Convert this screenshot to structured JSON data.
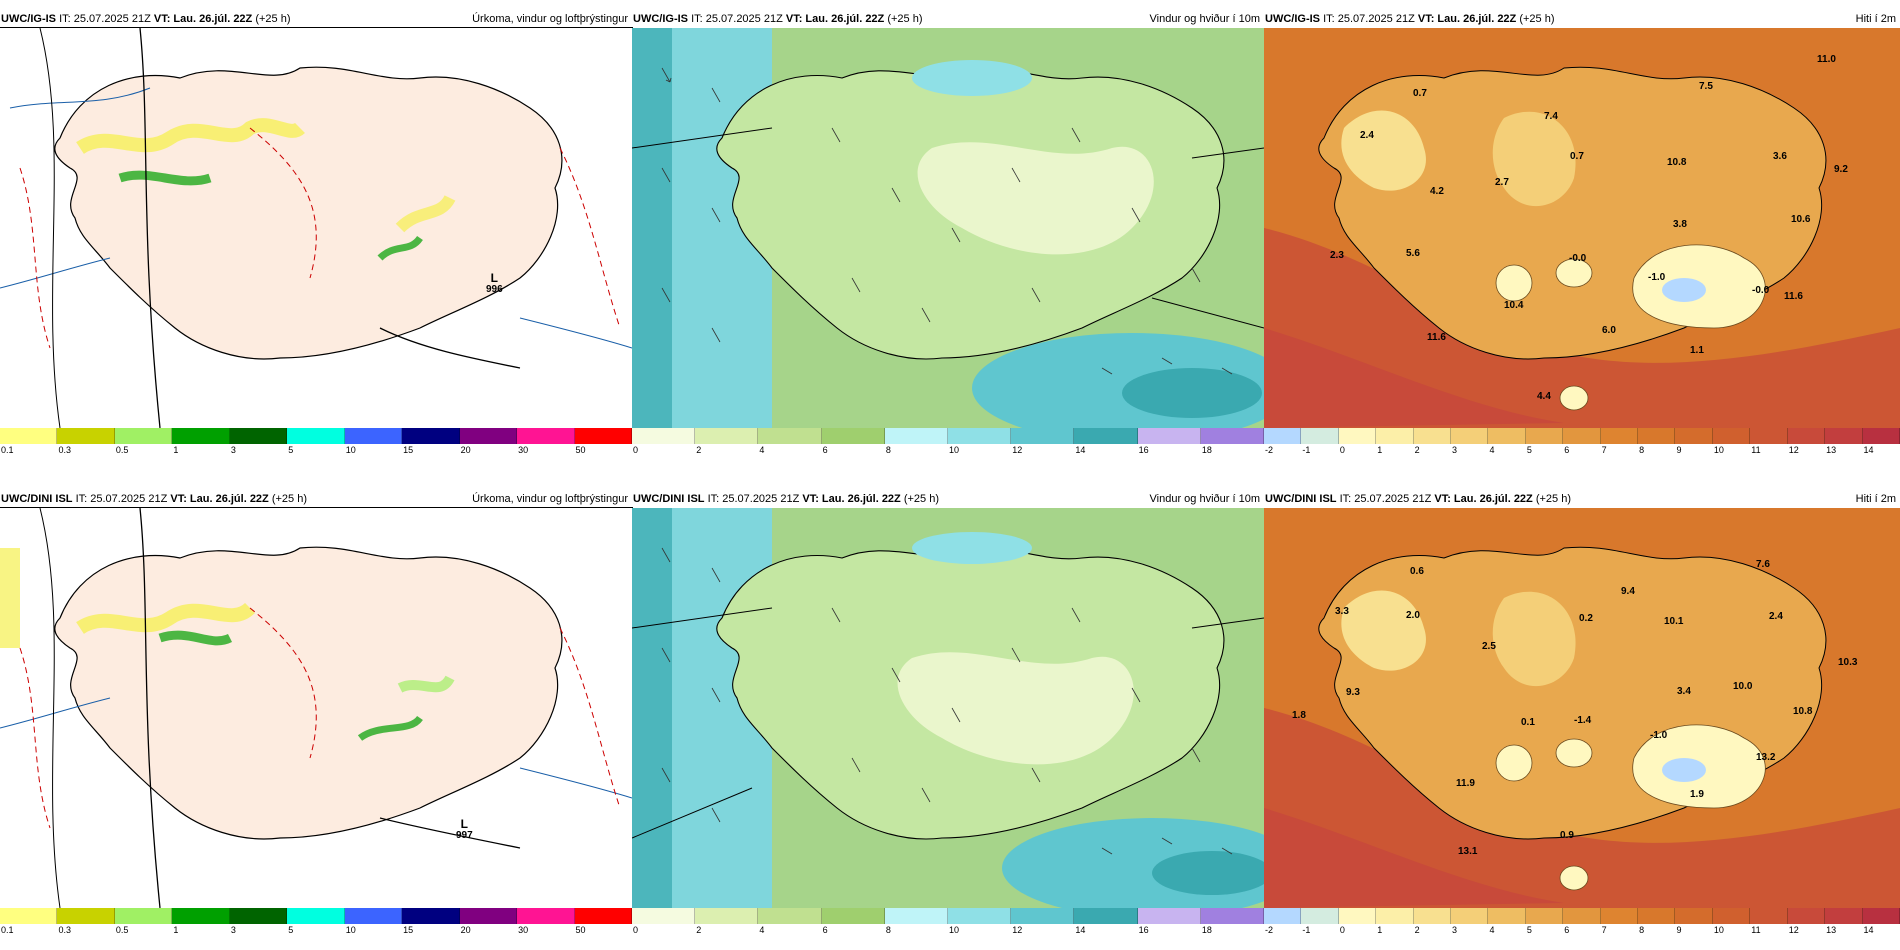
{
  "header": {
    "it": "IT: 25.07.2025 21Z",
    "vt": "VT: Lau. 26.júl. 22Z",
    "lead": "(+25 h)"
  },
  "rows": [
    {
      "model": "UWC/IG-IS",
      "precip": {
        "pressure_lows": [
          {
            "symbol": "L",
            "value": "996"
          }
        ]
      },
      "temp_values": [
        "0.7",
        "2.4",
        "7.4",
        "7.5",
        "11.0",
        "0.7",
        "10.8",
        "3.6",
        "9.2",
        "4.2",
        "2.7",
        "3.8",
        "10.6",
        "2.3",
        "5.6",
        "-0.0",
        "-1.0",
        "-0.0",
        "11.6",
        "10.4",
        "6.0",
        "11.6",
        "1.1",
        "4.4"
      ]
    },
    {
      "model": "UWC/DINI ISL",
      "precip": {
        "pressure_lows": [
          {
            "symbol": "L",
            "value": "997"
          }
        ]
      },
      "temp_values": [
        "0.6",
        "3.3",
        "2.0",
        "9.4",
        "7.6",
        "0.2",
        "10.1",
        "2.4",
        "10.3",
        "2.5",
        "3.4",
        "10.0",
        "9.3",
        "1.8",
        "0.1",
        "-1.4",
        "-1.0",
        "10.8",
        "13.2",
        "11.9",
        "1.9",
        "0.9",
        "13.1"
      ]
    }
  ],
  "panels": {
    "precip": {
      "title": "Úrkoma, vindur og loftþrýstingur",
      "colorbar": {
        "labels": [
          "0.1",
          "0.3",
          "0.5",
          "1",
          "3",
          "5",
          "10",
          "15",
          "20",
          "30",
          "50"
        ],
        "colors": [
          "#ffff80",
          "#c8d200",
          "#a0f064",
          "#00a000",
          "#006400",
          "#00ffe0",
          "#3c64ff",
          "#000080",
          "#800080",
          "#ff1493",
          "#ff0000"
        ]
      }
    },
    "wind": {
      "title": "Vindur og hviður í 10m",
      "colorbar": {
        "labels": [
          "0",
          "2",
          "4",
          "6",
          "8",
          "10",
          "12",
          "14",
          "16",
          "18"
        ],
        "colors": [
          "#f5fbe0",
          "#dcefb0",
          "#c0e090",
          "#9fcf6e",
          "#bff4f8",
          "#8fe0e6",
          "#5fc6cf",
          "#3aa9b0",
          "#c8b4f0",
          "#a080e0"
        ]
      }
    },
    "temp": {
      "title": "Hiti í 2m",
      "colorbar": {
        "labels": [
          "-2",
          "-1",
          "0",
          "1",
          "2",
          "3",
          "4",
          "5",
          "6",
          "7",
          "8",
          "9",
          "10",
          "11",
          "12",
          "13",
          "14"
        ],
        "colors": [
          "#b4d8ff",
          "#d4ece0",
          "#fff8c0",
          "#fcefa8",
          "#f8e090",
          "#f4cf78",
          "#eebd62",
          "#e8a84e",
          "#e2963e",
          "#de8430",
          "#d8782c",
          "#d46c2c",
          "#d0602e",
          "#cc5634",
          "#c84a3a",
          "#c23e3e",
          "#b83040"
        ]
      }
    }
  },
  "colors": {
    "land": "#fdece0",
    "sea_precip": "#ffffff",
    "isobar": "#000000",
    "temp_contour": "#cc0000",
    "lat_line": "#1a5fa8"
  }
}
